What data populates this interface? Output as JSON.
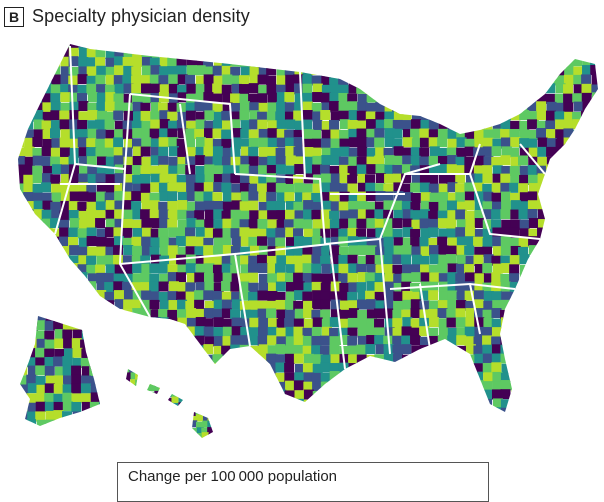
{
  "panel": {
    "letter": "B",
    "title": "Specialty physician density"
  },
  "legend": {
    "title": "Change per 100 000 population",
    "palette": [
      "#440154",
      "#3b528b",
      "#21918c",
      "#5ec962",
      "#b5de2b"
    ]
  },
  "map": {
    "regions": [
      "contiguous-us",
      "alaska",
      "hawaii"
    ],
    "border_color": "#ffffff"
  }
}
